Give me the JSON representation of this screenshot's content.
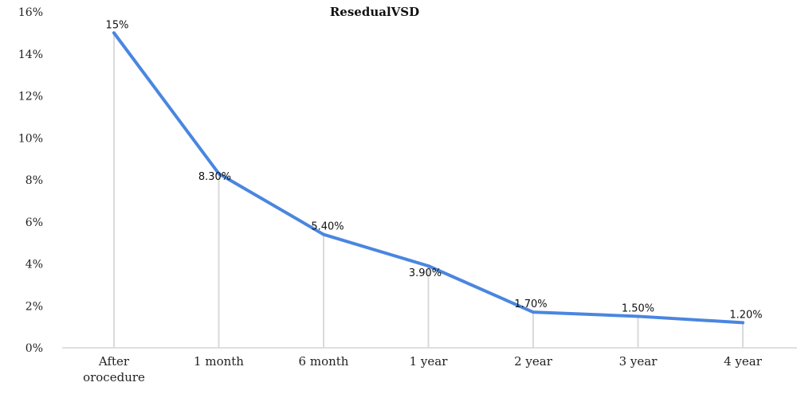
{
  "chart_data": {
    "type": "line",
    "title": "ResedualVSD",
    "categories": [
      [
        "After",
        "orocedure"
      ],
      [
        "1 month"
      ],
      [
        "6 month"
      ],
      [
        "1 year"
      ],
      [
        "2 year"
      ],
      [
        "3 year"
      ],
      [
        "4 year"
      ]
    ],
    "values": [
      15.0,
      8.3,
      5.4,
      3.9,
      1.7,
      1.5,
      1.2
    ],
    "data_labels": [
      "15%",
      "8.30%",
      "5.40%",
      "3.90%",
      "1.70%",
      "1.50%",
      "1.20%"
    ],
    "y_tick_labels": [
      "0%",
      "2%",
      "4%",
      "6%",
      "8%",
      "10%",
      "12%",
      "14%",
      "16%"
    ],
    "y_ticks": [
      0,
      2,
      4,
      6,
      8,
      10,
      12,
      14,
      16
    ],
    "ylim": [
      0,
      16
    ],
    "xlabel": "",
    "ylabel": "",
    "grid": false,
    "drop_lines": true,
    "line_color": "#4a86e0",
    "dropline_color": "#dadada"
  }
}
